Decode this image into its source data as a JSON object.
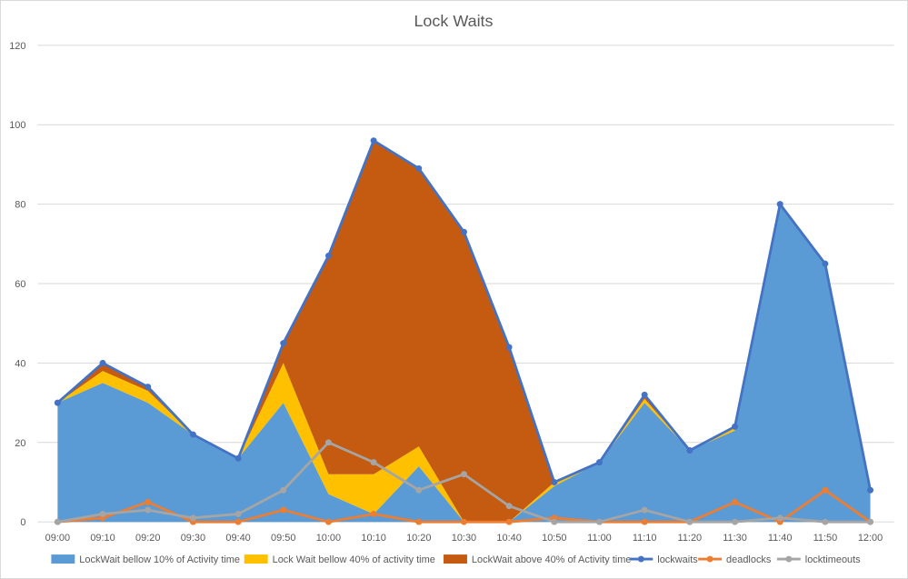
{
  "chart_data": {
    "type": "area",
    "title": "Lock Waits",
    "xlabel": "",
    "ylabel": "",
    "ylim": [
      0,
      120
    ],
    "yticks": [
      0,
      20,
      40,
      60,
      80,
      100,
      120
    ],
    "categories": [
      "09:00",
      "09:10",
      "09:20",
      "09:30",
      "09:40",
      "09:50",
      "10:00",
      "10:10",
      "10:20",
      "10:30",
      "10:40",
      "10:50",
      "11:00",
      "11:10",
      "11:20",
      "11:30",
      "11:40",
      "11:50",
      "12:00"
    ],
    "stacked_areas": [
      {
        "name": "LockWait bellow 10% of Activity time",
        "color": "#5b9bd5",
        "values": [
          30,
          35,
          30,
          22,
          16,
          30,
          7,
          2,
          14,
          0,
          0,
          9,
          15,
          30,
          18,
          23,
          80,
          65,
          8
        ]
      },
      {
        "name": "Lock Wait bellow 40% of activity time",
        "color": "#ffc000",
        "values": [
          0,
          3,
          3,
          0,
          0,
          10,
          5,
          10,
          5,
          0,
          0,
          1,
          0,
          1,
          0,
          1,
          0,
          0,
          0
        ]
      },
      {
        "name": "LockWait above 40% of Activity time",
        "color": "#c55a11",
        "values": [
          0,
          2,
          1,
          0,
          0,
          5,
          55,
          84,
          70,
          73,
          44,
          0,
          0,
          1,
          0,
          0,
          0,
          0,
          0
        ]
      }
    ],
    "lines": [
      {
        "name": "lockwaits",
        "color": "#4472c4",
        "values": [
          30,
          40,
          34,
          22,
          16,
          45,
          67,
          96,
          89,
          73,
          44,
          10,
          15,
          32,
          18,
          24,
          80,
          65,
          8
        ]
      },
      {
        "name": "deadlocks",
        "color": "#ed7d31",
        "values": [
          0,
          1,
          5,
          0,
          0,
          3,
          0,
          2,
          0,
          0,
          0,
          1,
          0,
          0,
          0,
          5,
          0,
          8,
          0
        ]
      },
      {
        "name": "locktimeouts",
        "color": "#a5a5a5",
        "values": [
          0,
          2,
          3,
          1,
          2,
          8,
          20,
          15,
          8,
          12,
          4,
          0,
          0,
          3,
          0,
          0,
          1,
          0,
          0
        ]
      }
    ],
    "legend_position": "bottom",
    "grid": true
  }
}
